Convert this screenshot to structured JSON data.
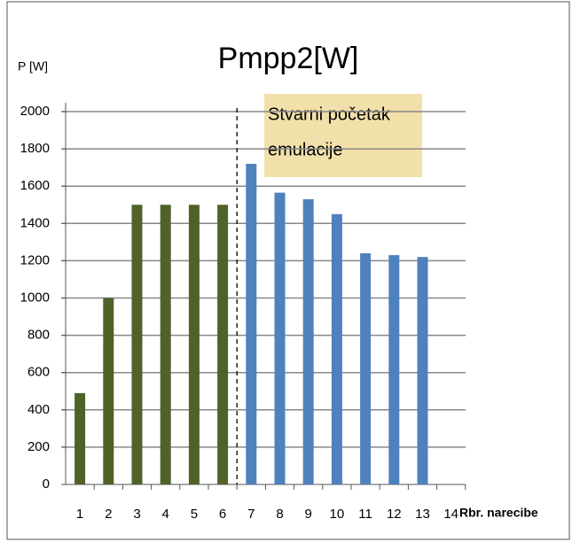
{
  "chart_data": {
    "type": "bar",
    "title": "Pmpp2[W]",
    "y_label": "P [W]",
    "x_label": "Rbr. narecibe",
    "annotation": [
      "Stvarni početak",
      "emulacije"
    ],
    "categories": [
      "1",
      "2",
      "3",
      "4",
      "5",
      "6",
      "7",
      "8",
      "9",
      "10",
      "11",
      "12",
      "13",
      "14"
    ],
    "values": [
      490,
      1000,
      1500,
      1500,
      1500,
      1500,
      1720,
      1565,
      1530,
      1450,
      1240,
      1230,
      1220,
      null
    ],
    "colors": [
      "#4f6228",
      "#4f6228",
      "#4f6228",
      "#4f6228",
      "#4f6228",
      "#4f6228",
      "#4f81bd",
      "#4f81bd",
      "#4f81bd",
      "#4f81bd",
      "#4f81bd",
      "#4f81bd",
      "#4f81bd",
      "#4f81bd"
    ],
    "ylim": [
      0,
      2000
    ],
    "yticks": [
      0,
      200,
      400,
      600,
      800,
      1000,
      1200,
      1400,
      1600,
      1800,
      2000
    ],
    "grid": true
  }
}
